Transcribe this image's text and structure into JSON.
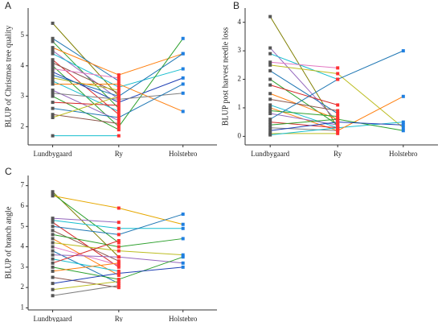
{
  "chart_data": [
    {
      "type": "line",
      "panel": "A",
      "ylabel": "BLUP of Christmas tree quality",
      "categories": [
        "Lundbygaard",
        "Ry",
        "Holstebro"
      ],
      "marker_colors": [
        "#555555",
        "#ff3030",
        "#1f7fe0"
      ],
      "ylim": [
        1.4,
        5.9
      ],
      "yticks": [
        2,
        3,
        4,
        5
      ],
      "series": [
        {
          "color": "#7f7f00",
          "values": [
            5.4,
            3.0,
            null
          ]
        },
        {
          "color": "#1f77b4",
          "values": [
            4.9,
            3.5,
            null
          ]
        },
        {
          "color": "#2ca02c",
          "values": [
            4.8,
            2.6,
            null
          ]
        },
        {
          "color": "#ff7f0e",
          "values": [
            4.6,
            3.7,
            4.4
          ]
        },
        {
          "color": "#9467bd",
          "values": [
            4.5,
            2.9,
            null
          ]
        },
        {
          "color": "#17becf",
          "values": [
            4.4,
            3.3,
            3.9
          ]
        },
        {
          "color": "#d62728",
          "values": [
            4.2,
            2.4,
            null
          ]
        },
        {
          "color": "#8c564b",
          "values": [
            4.1,
            3.1,
            null
          ]
        },
        {
          "color": "#2ca02c",
          "values": [
            4.0,
            2.0,
            4.9
          ]
        },
        {
          "color": "#e377c2",
          "values": [
            3.9,
            3.6,
            null
          ]
        },
        {
          "color": "#1f3fb4",
          "values": [
            3.8,
            2.8,
            3.6
          ]
        },
        {
          "color": "#bcbd22",
          "values": [
            3.6,
            3.2,
            null
          ]
        },
        {
          "color": "#17becf",
          "values": [
            3.5,
            2.5,
            null
          ]
        },
        {
          "color": "#ff7f0e",
          "values": [
            3.4,
            3.4,
            2.5
          ]
        },
        {
          "color": "#9467bd",
          "values": [
            3.2,
            2.2,
            null
          ]
        },
        {
          "color": "#7f7f7f",
          "values": [
            3.1,
            2.9,
            3.1
          ]
        },
        {
          "color": "#2ca02c",
          "values": [
            3.0,
            1.9,
            null
          ]
        },
        {
          "color": "#d62728",
          "values": [
            2.8,
            2.7,
            null
          ]
        },
        {
          "color": "#1f77b4",
          "values": [
            2.6,
            2.3,
            3.4
          ]
        },
        {
          "color": "#8c564b",
          "values": [
            2.4,
            2.1,
            null
          ]
        },
        {
          "color": "#bcbd22",
          "values": [
            2.3,
            3.0,
            null
          ]
        },
        {
          "color": "#17becf",
          "values": [
            1.7,
            1.7,
            null
          ]
        },
        {
          "color": "#1f77b4",
          "values": [
            3.7,
            3.0,
            4.4
          ]
        }
      ]
    },
    {
      "type": "line",
      "panel": "B",
      "ylabel": "BLUP post harvest needle loss",
      "categories": [
        "Lundbygaard",
        "Ry",
        "Holstebro"
      ],
      "marker_colors": [
        "#555555",
        "#ff3030",
        "#1f7fe0"
      ],
      "ylim": [
        -0.3,
        4.5
      ],
      "yticks": [
        0,
        1,
        2,
        3,
        4
      ],
      "series": [
        {
          "color": "#7f7f00",
          "values": [
            4.2,
            0.3,
            null
          ]
        },
        {
          "color": "#9467bd",
          "values": [
            3.1,
            0.5,
            null
          ]
        },
        {
          "color": "#17becf",
          "values": [
            2.9,
            2.0,
            null
          ]
        },
        {
          "color": "#e377c2",
          "values": [
            2.6,
            2.4,
            null
          ]
        },
        {
          "color": "#bcbd22",
          "values": [
            2.5,
            2.2,
            0.3
          ]
        },
        {
          "color": "#1f77b4",
          "values": [
            2.3,
            0.8,
            null
          ]
        },
        {
          "color": "#2ca02c",
          "values": [
            2.0,
            0.4,
            null
          ]
        },
        {
          "color": "#d62728",
          "values": [
            1.8,
            1.1,
            null
          ]
        },
        {
          "color": "#ff7f0e",
          "values": [
            1.5,
            0.6,
            null
          ]
        },
        {
          "color": "#8c564b",
          "values": [
            1.3,
            0.9,
            null
          ]
        },
        {
          "color": "#17becf",
          "values": [
            1.1,
            0.3,
            0.5
          ]
        },
        {
          "color": "#ff7f0e",
          "values": [
            1.0,
            0.2,
            1.4
          ]
        },
        {
          "color": "#2ca02c",
          "values": [
            0.9,
            0.7,
            null
          ]
        },
        {
          "color": "#9467bd",
          "values": [
            0.8,
            0.4,
            null
          ]
        },
        {
          "color": "#1f77b4",
          "values": [
            0.6,
            2.0,
            3.0
          ]
        },
        {
          "color": "#d62728",
          "values": [
            0.5,
            0.3,
            null
          ]
        },
        {
          "color": "#2ca02c",
          "values": [
            0.4,
            0.6,
            0.2
          ]
        },
        {
          "color": "#7f7f7f",
          "values": [
            0.3,
            0.2,
            null
          ]
        },
        {
          "color": "#1f3fb4",
          "values": [
            0.2,
            0.5,
            0.4
          ]
        },
        {
          "color": "#bcbd22",
          "values": [
            0.1,
            0.1,
            null
          ]
        },
        {
          "color": "#17becf",
          "values": [
            0.05,
            0.3,
            null
          ]
        }
      ]
    },
    {
      "type": "line",
      "panel": "C",
      "ylabel": "BLUP of branch angle",
      "categories": [
        "Lundbygaard",
        "Ry",
        "Holstebro"
      ],
      "marker_colors": [
        "#555555",
        "#ff3030",
        "#1f7fe0"
      ],
      "ylim": [
        0.9,
        7.5
      ],
      "yticks": [
        1,
        2,
        3,
        4,
        5,
        6,
        7
      ],
      "series": [
        {
          "color": "#7f7f00",
          "values": [
            6.7,
            3.5,
            null
          ]
        },
        {
          "color": "#2ca02c",
          "values": [
            6.6,
            4.2,
            null
          ]
        },
        {
          "color": "#e6a800",
          "values": [
            6.5,
            5.9,
            5.1
          ]
        },
        {
          "color": "#9467bd",
          "values": [
            5.4,
            5.2,
            null
          ]
        },
        {
          "color": "#17becf",
          "values": [
            5.3,
            4.9,
            4.9
          ]
        },
        {
          "color": "#d62728",
          "values": [
            5.2,
            3.0,
            null
          ]
        },
        {
          "color": "#1f77b4",
          "values": [
            5.0,
            4.6,
            5.6
          ]
        },
        {
          "color": "#8c564b",
          "values": [
            4.8,
            3.3,
            null
          ]
        },
        {
          "color": "#2ca02c",
          "values": [
            4.6,
            4.0,
            4.4
          ]
        },
        {
          "color": "#ff7f0e",
          "values": [
            4.4,
            2.6,
            null
          ]
        },
        {
          "color": "#bcbd22",
          "values": [
            4.2,
            3.8,
            3.6
          ]
        },
        {
          "color": "#e377c2",
          "values": [
            4.0,
            3.1,
            null
          ]
        },
        {
          "color": "#1f77b4",
          "values": [
            3.8,
            2.2,
            null
          ]
        },
        {
          "color": "#9467bd",
          "values": [
            3.6,
            3.5,
            3.2
          ]
        },
        {
          "color": "#17becf",
          "values": [
            3.4,
            2.8,
            null
          ]
        },
        {
          "color": "#d62728",
          "values": [
            3.2,
            4.3,
            null
          ]
        },
        {
          "color": "#2ca02c",
          "values": [
            3.0,
            2.4,
            3.5
          ]
        },
        {
          "color": "#ff7f0e",
          "values": [
            2.8,
            3.2,
            null
          ]
        },
        {
          "color": "#8c564b",
          "values": [
            2.5,
            2.0,
            null
          ]
        },
        {
          "color": "#1f3fb4",
          "values": [
            2.2,
            2.7,
            3.0
          ]
        },
        {
          "color": "#bcbd22",
          "values": [
            1.9,
            2.3,
            null
          ]
        },
        {
          "color": "#7f7f7f",
          "values": [
            1.6,
            2.1,
            null
          ]
        }
      ]
    }
  ]
}
